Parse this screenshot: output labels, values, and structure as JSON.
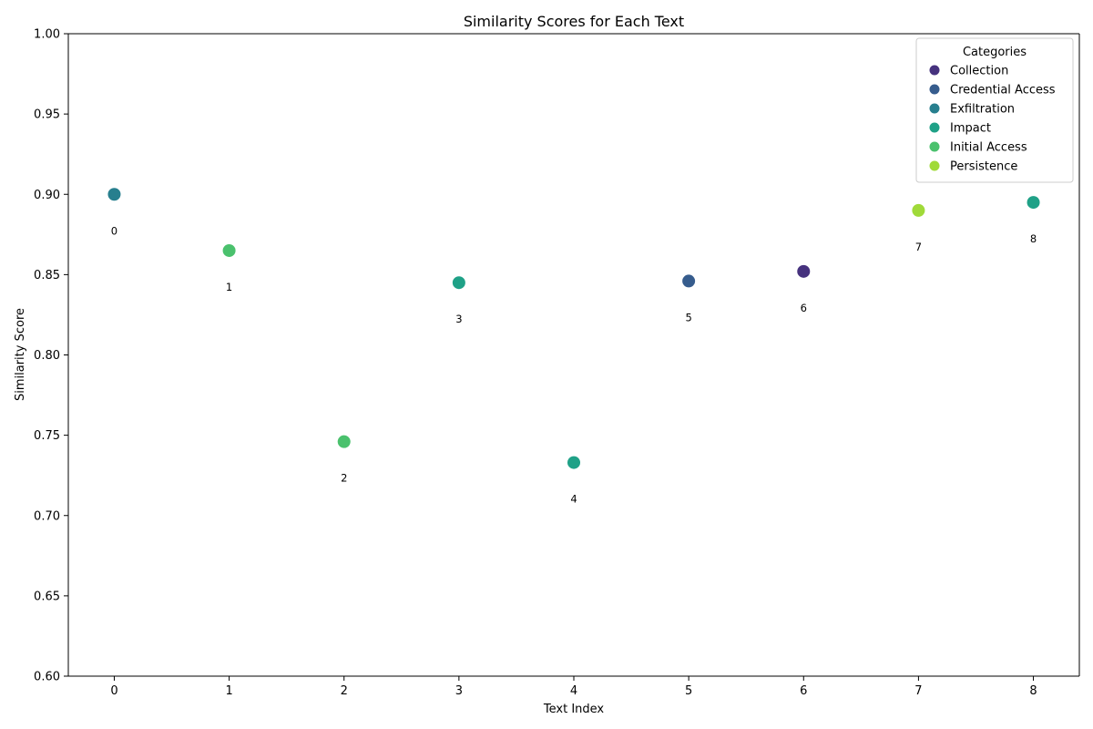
{
  "chart_data": {
    "type": "scatter",
    "title": "Similarity Scores for Each Text",
    "xlabel": "Text Index",
    "ylabel": "Similarity Score",
    "xlim": [
      -0.4,
      8.4
    ],
    "ylim": [
      0.6,
      1.0
    ],
    "x_ticks": [
      "0",
      "1",
      "2",
      "3",
      "4",
      "5",
      "6",
      "7",
      "8"
    ],
    "y_ticks": [
      "0.60",
      "0.65",
      "0.70",
      "0.75",
      "0.80",
      "0.85",
      "0.90",
      "0.95",
      "1.00"
    ],
    "grid": false,
    "legend": {
      "title": "Categories",
      "placement": "top-right",
      "entries": [
        {
          "name": "Collection",
          "color": "#46327e"
        },
        {
          "name": "Credential Access",
          "color": "#365c8d"
        },
        {
          "name": "Exfiltration",
          "color": "#277f8e"
        },
        {
          "name": "Impact",
          "color": "#1fa187"
        },
        {
          "name": "Initial Access",
          "color": "#4ac16d"
        },
        {
          "name": "Persistence",
          "color": "#a0da39"
        }
      ]
    },
    "points": [
      {
        "x": 0,
        "y": 0.9,
        "label": "0",
        "category": "Exfiltration"
      },
      {
        "x": 1,
        "y": 0.865,
        "label": "1",
        "category": "Initial Access"
      },
      {
        "x": 2,
        "y": 0.746,
        "label": "2",
        "category": "Initial Access"
      },
      {
        "x": 3,
        "y": 0.845,
        "label": "3",
        "category": "Impact"
      },
      {
        "x": 4,
        "y": 0.733,
        "label": "4",
        "category": "Impact"
      },
      {
        "x": 5,
        "y": 0.846,
        "label": "5",
        "category": "Credential Access"
      },
      {
        "x": 6,
        "y": 0.852,
        "label": "6",
        "category": "Collection"
      },
      {
        "x": 7,
        "y": 0.89,
        "label": "7",
        "category": "Persistence"
      },
      {
        "x": 8,
        "y": 0.895,
        "label": "8",
        "category": "Impact"
      }
    ]
  }
}
